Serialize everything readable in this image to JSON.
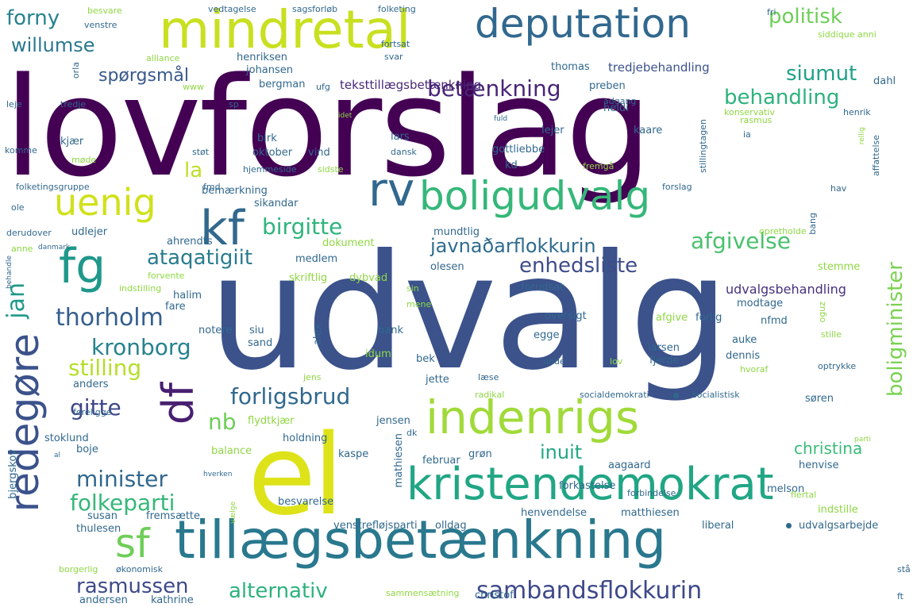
{
  "words": [
    {
      "text": "lovforslag",
      "color": "#440154"
    },
    {
      "text": "udvalg",
      "color": "#3b528b"
    },
    {
      "text": "el",
      "color": "#dde318"
    },
    {
      "text": "mindretal",
      "color": "#c8e020"
    },
    {
      "text": "deputation",
      "color": "#31688e"
    },
    {
      "text": "boligudvalg",
      "color": "#35b779"
    },
    {
      "text": "indenrigs",
      "color": "#a0da39"
    },
    {
      "text": "kristendemokrat",
      "color": "#21a685"
    },
    {
      "text": "tillægsbetænkning",
      "color": "#29788e"
    },
    {
      "text": "sf",
      "color": "#6ece58"
    },
    {
      "text": "df",
      "color": "#481f70"
    },
    {
      "text": "redegøre",
      "color": "#3b528b"
    },
    {
      "text": "fg",
      "color": "#1f988b"
    },
    {
      "text": "rv",
      "color": "#31688e"
    },
    {
      "text": "kf",
      "color": "#31688e"
    },
    {
      "text": "uenig",
      "color": "#d0e11c"
    },
    {
      "text": "sambandsflokkurin",
      "color": "#3e4989"
    },
    {
      "text": "betænkning",
      "color": "#482576"
    },
    {
      "text": "politisk",
      "color": "#6ece58"
    },
    {
      "text": "forny",
      "color": "#26828e"
    },
    {
      "text": "willumse",
      "color": "#2a788e"
    },
    {
      "text": "siumut",
      "color": "#1fa187"
    },
    {
      "text": "behandling",
      "color": "#2db27d"
    },
    {
      "text": "spørgsmål",
      "color": "#38598c"
    },
    {
      "text": "la",
      "color": "#bddf26"
    },
    {
      "text": "birgitte",
      "color": "#2fb47c"
    },
    {
      "text": "ataqatigiit",
      "color": "#287c8e"
    },
    {
      "text": "javnaðarflokkurin",
      "color": "#2f6c8e"
    },
    {
      "text": "afgivelse",
      "color": "#4ac16d"
    },
    {
      "text": "enhedsliste",
      "color": "#3e4c8a"
    },
    {
      "text": "jan",
      "color": "#1f9a8a"
    },
    {
      "text": "thorholm",
      "color": "#355f8d"
    },
    {
      "text": "kronborg",
      "color": "#26828e"
    },
    {
      "text": "stilling",
      "color": "#b5de2b"
    },
    {
      "text": "forligsbrud",
      "color": "#31688e"
    },
    {
      "text": "gitte",
      "color": "#3f4788"
    },
    {
      "text": "nb",
      "color": "#6ece58"
    },
    {
      "text": "inuit",
      "color": "#22a884"
    },
    {
      "text": "boligminister",
      "color": "#7ad151"
    },
    {
      "text": "minister",
      "color": "#31688e"
    },
    {
      "text": "folkeparti",
      "color": "#35b779"
    },
    {
      "text": "christina",
      "color": "#3aba76"
    },
    {
      "text": "rasmussen",
      "color": "#3e4a89"
    },
    {
      "text": "alternativ",
      "color": "#2db27d"
    },
    {
      "text": "udvalgsbehandling",
      "color": "#46327e"
    },
    {
      "text": "tredjebehandling",
      "color": "#3b528b"
    },
    {
      "text": "teksttillægsbetænkning",
      "color": "#482878"
    },
    {
      "text": "henriksen",
      "color": "#31688e"
    },
    {
      "text": "johansen",
      "color": "#31688e"
    },
    {
      "text": "bergman",
      "color": "#31688e"
    },
    {
      "text": "thomas",
      "color": "#31688e"
    },
    {
      "text": "preben",
      "color": "#31688e"
    },
    {
      "text": "heidi",
      "color": "#31688e"
    },
    {
      "text": "dahl",
      "color": "#31688e"
    },
    {
      "text": "lejer",
      "color": "#31688e"
    },
    {
      "text": "kaare",
      "color": "#31688e"
    },
    {
      "text": "gottliebbe",
      "color": "#31688e"
    },
    {
      "text": "kd",
      "color": "#31688e"
    },
    {
      "text": "lars",
      "color": "#31688e"
    },
    {
      "text": "birk",
      "color": "#31688e"
    },
    {
      "text": "kjær",
      "color": "#31688e"
    },
    {
      "text": "oktober",
      "color": "#31688e"
    },
    {
      "text": "vind",
      "color": "#31688e"
    },
    {
      "text": "bemærkning",
      "color": "#31688e"
    },
    {
      "text": "sikandar",
      "color": "#31688e"
    },
    {
      "text": "udlejer",
      "color": "#31688e"
    },
    {
      "text": "ahrendts",
      "color": "#31688e"
    },
    {
      "text": "dokument",
      "color": "#8fd744"
    },
    {
      "text": "medlem",
      "color": "#31688e"
    },
    {
      "text": "mundtlig",
      "color": "#31688e"
    },
    {
      "text": "skriftlig",
      "color": "#8fd744"
    },
    {
      "text": "dybvad",
      "color": "#8fd744"
    },
    {
      "text": "olesen",
      "color": "#31688e"
    },
    {
      "text": "forudsat",
      "color": "#31688e"
    },
    {
      "text": "modtage",
      "color": "#31688e"
    },
    {
      "text": "halim",
      "color": "#31688e"
    },
    {
      "text": "fare",
      "color": "#31688e"
    },
    {
      "text": "notere",
      "color": "#31688e"
    },
    {
      "text": "siu",
      "color": "#31688e"
    },
    {
      "text": "sand",
      "color": "#31688e"
    },
    {
      "text": "alex",
      "color": "#31688e"
    },
    {
      "text": "bank",
      "color": "#31688e"
    },
    {
      "text": "idum",
      "color": "#8fd744"
    },
    {
      "text": "bek",
      "color": "#31688e"
    },
    {
      "text": "jette",
      "color": "#31688e"
    },
    {
      "text": "egge",
      "color": "#31688e"
    },
    {
      "text": "oversigt",
      "color": "#31688e"
    },
    {
      "text": "forlig",
      "color": "#31688e"
    },
    {
      "text": "afgive",
      "color": "#8fd744"
    },
    {
      "text": "nfmd",
      "color": "#31688e"
    },
    {
      "text": "auke",
      "color": "#31688e"
    },
    {
      "text": "larsen",
      "color": "#31688e"
    },
    {
      "text": "dennis",
      "color": "#31688e"
    },
    {
      "text": "fjerde",
      "color": "#31688e"
    },
    {
      "text": "stemme",
      "color": "#8fd744"
    },
    {
      "text": "søren",
      "color": "#31688e"
    },
    {
      "text": "henvise",
      "color": "#31688e"
    },
    {
      "text": "melson",
      "color": "#31688e"
    },
    {
      "text": "forkastelse",
      "color": "#31688e"
    },
    {
      "text": "aagaard",
      "color": "#31688e"
    },
    {
      "text": "februar",
      "color": "#31688e"
    },
    {
      "text": "grøn",
      "color": "#31688e"
    },
    {
      "text": "mathiesen",
      "color": "#31688e"
    },
    {
      "text": "kaspe",
      "color": "#31688e"
    },
    {
      "text": "holdning",
      "color": "#31688e"
    },
    {
      "text": "jensen",
      "color": "#31688e"
    },
    {
      "text": "flydtkjær",
      "color": "#8fd744"
    },
    {
      "text": "stoklund",
      "color": "#31688e"
    },
    {
      "text": "boje",
      "color": "#31688e"
    },
    {
      "text": "balance",
      "color": "#8fd744"
    },
    {
      "text": "anders",
      "color": "#31688e"
    },
    {
      "text": "bjergskov",
      "color": "#31688e"
    },
    {
      "text": "susan",
      "color": "#31688e"
    },
    {
      "text": "thulesen",
      "color": "#31688e"
    },
    {
      "text": "fremsætte",
      "color": "#31688e"
    },
    {
      "text": "andersen",
      "color": "#31688e"
    },
    {
      "text": "kathrine",
      "color": "#31688e"
    },
    {
      "text": "christof",
      "color": "#31688e"
    },
    {
      "text": "besvarelse",
      "color": "#31688e"
    },
    {
      "text": "venstrefløjsparti",
      "color": "#31688e"
    },
    {
      "text": "olldag",
      "color": "#31688e"
    },
    {
      "text": "henvendelse",
      "color": "#31688e"
    },
    {
      "text": "matthiesen",
      "color": "#31688e"
    },
    {
      "text": "liberal",
      "color": "#31688e"
    },
    {
      "text": "udvalgsarbejde",
      "color": "#31688e"
    },
    {
      "text": "indstille",
      "color": "#8fd744"
    },
    {
      "text": "forbindelse",
      "color": "#31688e"
    },
    {
      "text": "flertal",
      "color": "#8fd744"
    },
    {
      "text": "økonomisk",
      "color": "#31688e"
    },
    {
      "text": "borgerlig",
      "color": "#8fd744"
    },
    {
      "text": "sammensætning",
      "color": "#8fd744"
    },
    {
      "text": "stå",
      "color": "#31688e"
    },
    {
      "text": "ft",
      "color": "#31688e"
    },
    {
      "text": "besvare",
      "color": "#8fd744"
    },
    {
      "text": "vedtagelse",
      "color": "#31688e"
    },
    {
      "text": "sagsforløb",
      "color": "#31688e"
    },
    {
      "text": "folketing",
      "color": "#31688e"
    },
    {
      "text": "fortsat",
      "color": "#31688e"
    },
    {
      "text": "svar",
      "color": "#31688e"
    },
    {
      "text": "fri",
      "color": "#31688e"
    },
    {
      "text": "siddique anni",
      "color": "#8fd744"
    },
    {
      "text": "venstre",
      "color": "#31688e"
    },
    {
      "text": "alliance",
      "color": "#8fd744"
    },
    {
      "text": "orla",
      "color": "#31688e"
    },
    {
      "text": "www",
      "color": "#8fd744"
    },
    {
      "text": "ufg",
      "color": "#31688e"
    },
    {
      "text": "leje",
      "color": "#31688e"
    },
    {
      "text": "tredje",
      "color": "#31688e"
    },
    {
      "text": "sp",
      "color": "#31688e"
    },
    {
      "text": "adgang",
      "color": "#31688e"
    },
    {
      "text": "konservativ",
      "color": "#8fd744"
    },
    {
      "text": "henrik",
      "color": "#31688e"
    },
    {
      "text": "stillingtagen",
      "color": "#31688e"
    },
    {
      "text": "rasmus",
      "color": "#8fd744"
    },
    {
      "text": "ia",
      "color": "#31688e"
    },
    {
      "text": "affattelse",
      "color": "#31688e"
    },
    {
      "text": "komme",
      "color": "#31688e"
    },
    {
      "text": "støt",
      "color": "#31688e"
    },
    {
      "text": "møde",
      "color": "#8fd744"
    },
    {
      "text": "dansk",
      "color": "#31688e"
    },
    {
      "text": "hjemmeside",
      "color": "#31688e"
    },
    {
      "text": "sidste",
      "color": "#8fd744"
    },
    {
      "text": "fremgå",
      "color": "#8fd744"
    },
    {
      "text": "folketingsgruppe",
      "color": "#31688e"
    },
    {
      "text": "fmd",
      "color": "#31688e"
    },
    {
      "text": "forslag",
      "color": "#31688e"
    },
    {
      "text": "hav",
      "color": "#31688e"
    },
    {
      "text": "ole",
      "color": "#31688e"
    },
    {
      "text": "derudover",
      "color": "#31688e"
    },
    {
      "text": "anne",
      "color": "#8fd744"
    },
    {
      "text": "danmark",
      "color": "#31688e"
    },
    {
      "text": "behandle",
      "color": "#31688e"
    },
    {
      "text": "forvente",
      "color": "#8fd744"
    },
    {
      "text": "indstilling",
      "color": "#8fd744"
    },
    {
      "text": "sin",
      "color": "#8fd744"
    },
    {
      "text": "mene",
      "color": "#8fd744"
    },
    {
      "text": "opretholde",
      "color": "#8fd744"
    },
    {
      "text": "bang",
      "color": "#31688e"
    },
    {
      "text": "oguz",
      "color": "#8fd744"
    },
    {
      "text": "stille",
      "color": "#8fd744"
    },
    {
      "text": "hvoraf",
      "color": "#8fd744"
    },
    {
      "text": "optrykke",
      "color": "#31688e"
    },
    {
      "text": "lov",
      "color": "#8fd744"
    },
    {
      "text": "unde",
      "color": "#31688e"
    },
    {
      "text": "læse",
      "color": "#31688e"
    },
    {
      "text": "jens",
      "color": "#8fd744"
    },
    {
      "text": "radikal",
      "color": "#8fd744"
    },
    {
      "text": "socialdemokrati",
      "color": "#31688e"
    },
    {
      "text": "socialistisk",
      "color": "#31688e"
    },
    {
      "text": "foreligge",
      "color": "#31688e"
    },
    {
      "text": "dk",
      "color": "#31688e"
    },
    {
      "text": "al",
      "color": "#31688e"
    },
    {
      "text": "parti",
      "color": "#8fd744"
    },
    {
      "text": "hverken",
      "color": "#31688e"
    },
    {
      "text": "vælge",
      "color": "#8fd744"
    },
    {
      "text": "fuld",
      "color": "#31688e"
    },
    {
      "text": "idet",
      "color": "#8fd744"
    },
    {
      "text": "rellig",
      "color": "#8fd744"
    }
  ]
}
